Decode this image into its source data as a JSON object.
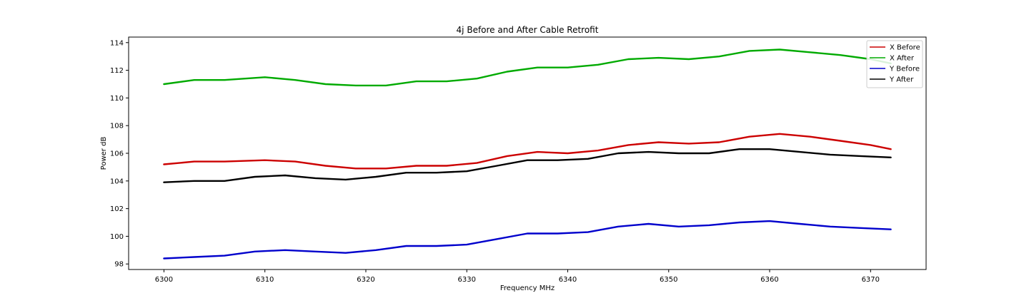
{
  "chart_data": {
    "type": "line",
    "title": "4j Before and After Cable Retrofit",
    "xlabel": "Frequency MHz",
    "ylabel": "Power dB",
    "xlim": [
      6296.5,
      6375.5
    ],
    "ylim": [
      97.6,
      114.4
    ],
    "xticks": [
      6300,
      6310,
      6320,
      6330,
      6340,
      6350,
      6360,
      6370
    ],
    "yticks": [
      98,
      100,
      102,
      104,
      106,
      108,
      110,
      112,
      114
    ],
    "grid": false,
    "legend": "top-right",
    "series": [
      {
        "name": "X Before",
        "color": "#cc0000",
        "x": [
          6300,
          6303,
          6306,
          6310,
          6313,
          6316,
          6319,
          6322,
          6325,
          6328,
          6331,
          6334,
          6337,
          6340,
          6343,
          6346,
          6349,
          6352,
          6355,
          6358,
          6361,
          6364,
          6367,
          6370,
          6372
        ],
        "y": [
          105.2,
          105.4,
          105.4,
          105.5,
          105.4,
          105.1,
          104.9,
          104.9,
          105.1,
          105.1,
          105.3,
          105.8,
          106.1,
          106.0,
          106.2,
          106.6,
          106.8,
          106.7,
          106.8,
          107.2,
          107.4,
          107.2,
          106.9,
          106.6,
          106.3
        ]
      },
      {
        "name": "X After",
        "color": "#00aa00",
        "x": [
          6300,
          6303,
          6306,
          6310,
          6313,
          6316,
          6319,
          6322,
          6325,
          6328,
          6331,
          6334,
          6337,
          6340,
          6343,
          6346,
          6349,
          6352,
          6355,
          6358,
          6361,
          6364,
          6367,
          6370,
          6372
        ],
        "y": [
          111.0,
          111.3,
          111.3,
          111.5,
          111.3,
          111.0,
          110.9,
          110.9,
          111.2,
          111.2,
          111.4,
          111.9,
          112.2,
          112.2,
          112.4,
          112.8,
          112.9,
          112.8,
          113.0,
          113.4,
          113.5,
          113.3,
          113.1,
          112.8,
          112.5
        ]
      },
      {
        "name": "Y Before",
        "color": "#0000cc",
        "x": [
          6300,
          6303,
          6306,
          6309,
          6312,
          6315,
          6318,
          6321,
          6324,
          6327,
          6330,
          6333,
          6336,
          6339,
          6342,
          6345,
          6348,
          6351,
          6354,
          6357,
          6360,
          6363,
          6366,
          6369,
          6372
        ],
        "y": [
          98.4,
          98.5,
          98.6,
          98.9,
          99.0,
          98.9,
          98.8,
          99.0,
          99.3,
          99.3,
          99.4,
          99.8,
          100.2,
          100.2,
          100.3,
          100.7,
          100.9,
          100.7,
          100.8,
          101.0,
          101.1,
          100.9,
          100.7,
          100.6,
          100.5
        ]
      },
      {
        "name": "Y After",
        "color": "#000000",
        "x": [
          6300,
          6303,
          6306,
          6309,
          6312,
          6315,
          6318,
          6321,
          6324,
          6327,
          6330,
          6333,
          6336,
          6339,
          6342,
          6345,
          6348,
          6351,
          6354,
          6357,
          6360,
          6363,
          6366,
          6369,
          6372
        ],
        "y": [
          103.9,
          104.0,
          104.0,
          104.3,
          104.4,
          104.2,
          104.1,
          104.3,
          104.6,
          104.6,
          104.7,
          105.1,
          105.5,
          105.5,
          105.6,
          106.0,
          106.1,
          106.0,
          106.0,
          106.3,
          106.3,
          106.1,
          105.9,
          105.8,
          105.7
        ]
      }
    ]
  }
}
